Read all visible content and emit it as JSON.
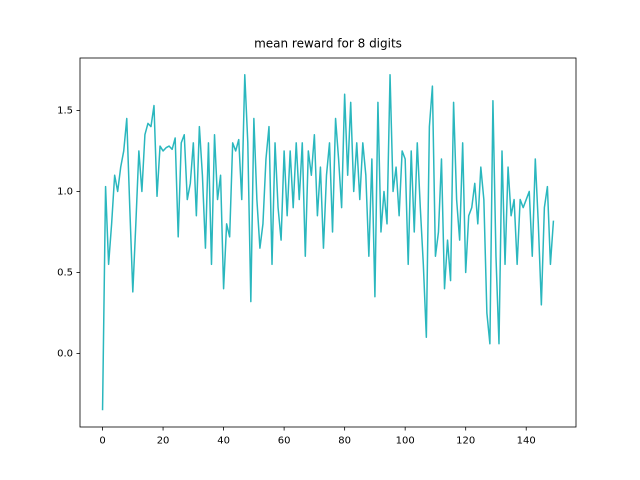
{
  "chart_data": {
    "type": "line",
    "title": "mean reward for 8 digits",
    "x": [
      0,
      1,
      2,
      3,
      4,
      5,
      6,
      7,
      8,
      9,
      10,
      11,
      12,
      13,
      14,
      15,
      16,
      17,
      18,
      19,
      20,
      21,
      22,
      23,
      24,
      25,
      26,
      27,
      28,
      29,
      30,
      31,
      32,
      33,
      34,
      35,
      36,
      37,
      38,
      39,
      40,
      41,
      42,
      43,
      44,
      45,
      46,
      47,
      48,
      49,
      50,
      51,
      52,
      53,
      54,
      55,
      56,
      57,
      58,
      59,
      60,
      61,
      62,
      63,
      64,
      65,
      66,
      67,
      68,
      69,
      70,
      71,
      72,
      73,
      74,
      75,
      76,
      77,
      78,
      79,
      80,
      81,
      82,
      83,
      84,
      85,
      86,
      87,
      88,
      89,
      90,
      91,
      92,
      93,
      94,
      95,
      96,
      97,
      98,
      99,
      100,
      101,
      102,
      103,
      104,
      105,
      106,
      107,
      108,
      109,
      110,
      111,
      112,
      113,
      114,
      115,
      116,
      117,
      118,
      119,
      120,
      121,
      122,
      123,
      124,
      125,
      126,
      127,
      128,
      129,
      130,
      131,
      132,
      133,
      134,
      135,
      136,
      137,
      138,
      139,
      140,
      141,
      142,
      143,
      144,
      145,
      146,
      147,
      148,
      149
    ],
    "series": [
      {
        "color": "#2ab7be",
        "values": [
          -0.35,
          1.03,
          0.55,
          0.8,
          1.1,
          1.0,
          1.15,
          1.25,
          1.45,
          0.9,
          0.38,
          0.8,
          1.25,
          1.0,
          1.35,
          1.42,
          1.4,
          1.53,
          0.97,
          1.28,
          1.25,
          1.27,
          1.28,
          1.26,
          1.33,
          0.72,
          1.3,
          1.35,
          0.95,
          1.05,
          1.3,
          0.85,
          1.4,
          1.1,
          0.65,
          1.3,
          0.55,
          1.35,
          0.95,
          1.1,
          0.4,
          0.8,
          0.72,
          1.3,
          1.25,
          1.32,
          0.95,
          1.72,
          1.3,
          0.32,
          1.45,
          0.95,
          0.65,
          0.8,
          1.2,
          1.4,
          0.55,
          1.3,
          0.9,
          0.7,
          1.25,
          0.85,
          1.25,
          0.9,
          1.3,
          0.95,
          1.3,
          0.6,
          1.25,
          1.1,
          1.35,
          0.85,
          1.15,
          0.65,
          1.1,
          1.3,
          0.75,
          1.45,
          1.2,
          0.9,
          1.6,
          1.1,
          1.55,
          1.0,
          1.3,
          0.95,
          1.3,
          1.1,
          0.6,
          1.2,
          0.35,
          1.55,
          0.75,
          1.0,
          0.8,
          1.72,
          1.0,
          1.15,
          0.85,
          1.25,
          1.2,
          0.55,
          1.25,
          0.75,
          1.3,
          0.9,
          0.55,
          0.1,
          1.4,
          1.65,
          0.6,
          0.75,
          1.2,
          0.4,
          0.7,
          0.45,
          1.55,
          0.95,
          0.7,
          1.3,
          0.5,
          0.85,
          0.9,
          1.05,
          0.8,
          1.15,
          0.95,
          0.25,
          0.06,
          1.56,
          0.6,
          0.06,
          1.25,
          0.55,
          1.15,
          0.85,
          0.95,
          0.55,
          0.95,
          0.9,
          0.95,
          1.0,
          0.6,
          1.2,
          0.8,
          0.3,
          0.9,
          1.03,
          0.55,
          0.82
        ]
      }
    ],
    "xlim": [
      -7.45,
      156.45
    ],
    "ylim": [
      -0.4535,
      1.8235
    ],
    "xticks": [
      0,
      20,
      40,
      60,
      80,
      100,
      120,
      140
    ],
    "yticks": [
      {
        "value": 0,
        "label": "0.0"
      },
      0.5,
      {
        "value": 1,
        "label": "1.0"
      },
      1.5
    ]
  }
}
